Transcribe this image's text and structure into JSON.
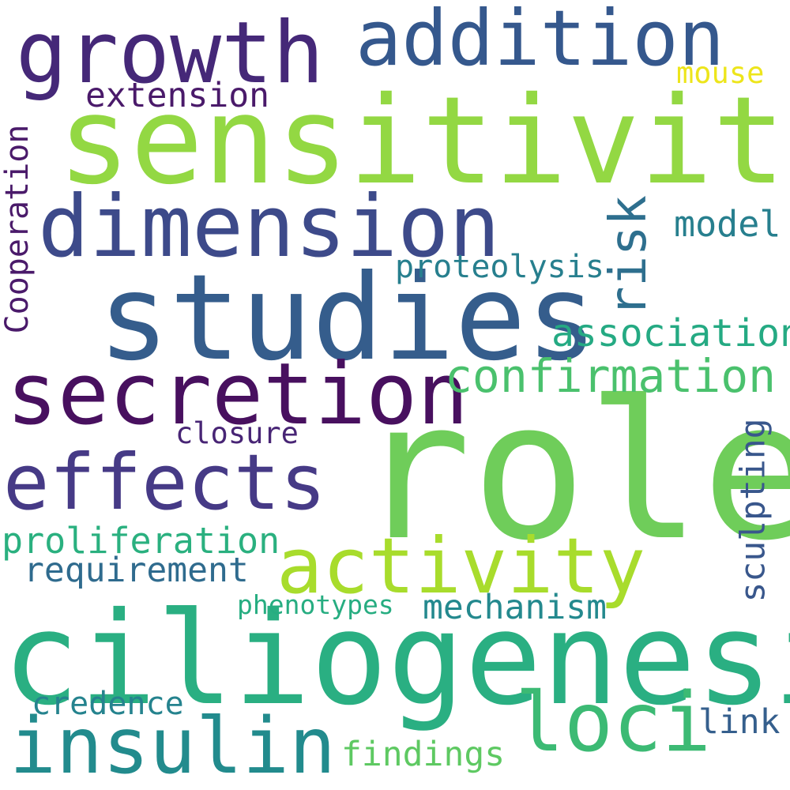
{
  "words": {
    "role": {
      "text": "role",
      "color": "#6fcd5a"
    },
    "ciliogenesis": {
      "text": "ciliogenesis",
      "color": "#2aaf82"
    },
    "studies": {
      "text": "studies",
      "color": "#355d8c"
    },
    "sensitivity": {
      "text": "sensitivity",
      "color": "#93d843"
    },
    "secretion": {
      "text": "secretion",
      "color": "#48105f"
    },
    "dimension": {
      "text": "dimension",
      "color": "#3d4a8a"
    },
    "growth": {
      "text": "growth",
      "color": "#452878"
    },
    "addition": {
      "text": "addition",
      "color": "#35588d"
    },
    "effects": {
      "text": "effects",
      "color": "#463a86"
    },
    "activity": {
      "text": "activity",
      "color": "#a8dc2c"
    },
    "insulin": {
      "text": "insulin",
      "color": "#228b8d"
    },
    "loci": {
      "text": "loci",
      "color": "#3cba74"
    },
    "confirmation": {
      "text": "confirmation",
      "color": "#4ac16d"
    },
    "association": {
      "text": "association",
      "color": "#25aa83"
    },
    "proliferation": {
      "text": "proliferation",
      "color": "#2ab07f"
    },
    "requirement": {
      "text": "requirement",
      "color": "#2f6b8e"
    },
    "mechanism": {
      "text": "mechanism",
      "color": "#24898e"
    },
    "risk": {
      "text": "risk",
      "color": "#2e6f8e"
    },
    "sculpting": {
      "text": "sculpting",
      "color": "#39578c"
    },
    "proteolysis": {
      "text": "proteolysis",
      "color": "#277f8e"
    },
    "model": {
      "text": "model",
      "color": "#277f8e"
    },
    "extension": {
      "text": "extension",
      "color": "#4a1a6a"
    },
    "closure": {
      "text": "closure",
      "color": "#482575"
    },
    "Cooperation": {
      "text": "Cooperation",
      "color": "#4a1a6a"
    },
    "mouse": {
      "text": "mouse",
      "color": "#ede51b"
    },
    "phenotypes": {
      "text": "phenotypes",
      "color": "#27ad81"
    },
    "credence": {
      "text": "credence",
      "color": "#25838e"
    },
    "findings": {
      "text": "findings",
      "color": "#5ec962"
    },
    "link": {
      "text": "link",
      "color": "#355f8d"
    }
  }
}
